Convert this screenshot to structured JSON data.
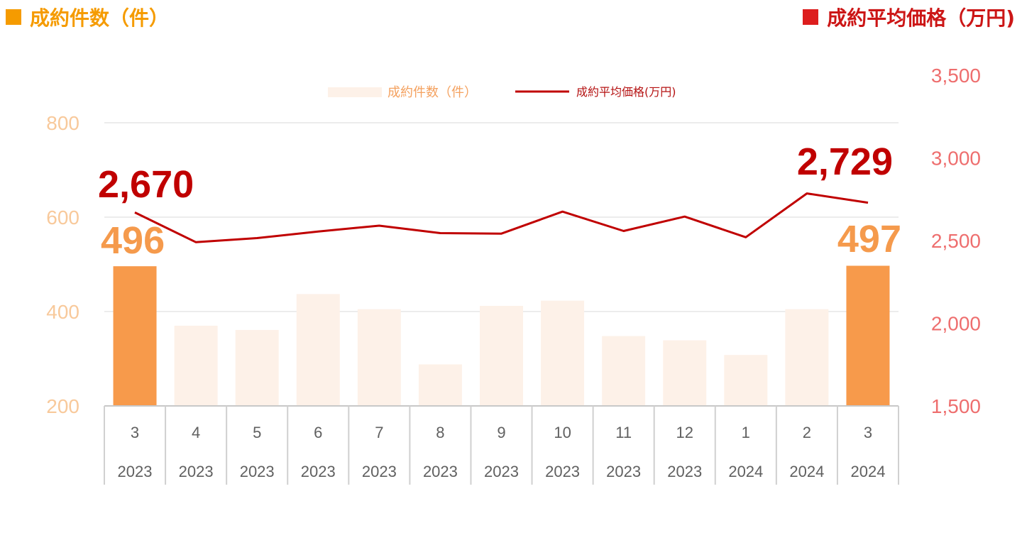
{
  "titles": {
    "left": "成約件数（件）",
    "right": "成約平均価格（万円)"
  },
  "colors": {
    "bar_highlight": "#f79a4b",
    "bar_normal": "#fdf1e8",
    "line": "#c00000",
    "left_axis_text": "#f8c99b",
    "right_axis_text": "#ee6e6e",
    "title_left": "#f59b00",
    "title_right": "#dd1d1d"
  },
  "chart_data": {
    "type": "bar",
    "categories": [
      {
        "month": "3",
        "year": "2023"
      },
      {
        "month": "4",
        "year": "2023"
      },
      {
        "month": "5",
        "year": "2023"
      },
      {
        "month": "6",
        "year": "2023"
      },
      {
        "month": "7",
        "year": "2023"
      },
      {
        "month": "8",
        "year": "2023"
      },
      {
        "month": "9",
        "year": "2023"
      },
      {
        "month": "10",
        "year": "2023"
      },
      {
        "month": "11",
        "year": "2023"
      },
      {
        "month": "12",
        "year": "2023"
      },
      {
        "month": "1",
        "year": "2024"
      },
      {
        "month": "2",
        "year": "2024"
      },
      {
        "month": "3",
        "year": "2024"
      }
    ],
    "series": [
      {
        "name": "成約件数（件）",
        "type": "bar",
        "axis": "left",
        "values": [
          496,
          370,
          361,
          437,
          405,
          288,
          412,
          423,
          348,
          339,
          308,
          405,
          497
        ],
        "highlight": [
          true,
          false,
          false,
          false,
          false,
          false,
          false,
          false,
          false,
          false,
          false,
          false,
          true
        ]
      },
      {
        "name": "成約平均価格(万円)",
        "type": "line",
        "axis": "right",
        "values": [
          2670,
          2490,
          2515,
          2555,
          2590,
          2545,
          2542,
          2675,
          2558,
          2645,
          2520,
          2785,
          2729
        ]
      }
    ],
    "y_left": {
      "range": [
        200,
        800
      ],
      "ticks": [
        "200",
        "400",
        "600",
        "800"
      ]
    },
    "y_right": {
      "range": [
        1500,
        3500
      ],
      "ticks": [
        "1,500",
        "2,000",
        "2,500",
        "3,000",
        "3,500"
      ]
    },
    "callouts": {
      "line_first": "2,670",
      "line_last": "2,729",
      "bar_first": "496",
      "bar_last": "497"
    },
    "legend_placement": "top-center",
    "grid": true
  }
}
